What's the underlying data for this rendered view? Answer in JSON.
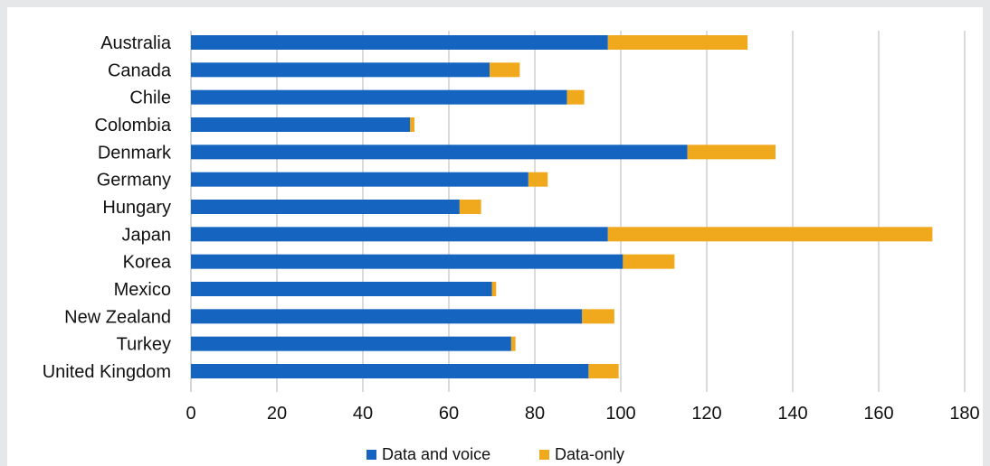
{
  "chart_data": {
    "type": "bar",
    "orientation": "horizontal",
    "stacked": true,
    "categories": [
      "Australia",
      "Canada",
      "Chile",
      "Colombia",
      "Denmark",
      "Germany",
      "Hungary",
      "Japan",
      "Korea",
      "Mexico",
      "New Zealand",
      "Turkey",
      "United Kingdom"
    ],
    "series": [
      {
        "name": "Data and voice",
        "color": "#1565c0",
        "values": [
          97,
          69.5,
          87.5,
          51,
          115.5,
          78.5,
          62.5,
          97,
          100.5,
          70,
          91,
          74.5,
          92.5
        ]
      },
      {
        "name": "Data-only",
        "color": "#f0a81c",
        "values": [
          32.5,
          7,
          4,
          1,
          20.5,
          4.5,
          5,
          75.5,
          12,
          1,
          7.5,
          1,
          7
        ]
      }
    ],
    "xlim": [
      0,
      180
    ],
    "x_ticks": [
      "0",
      "20",
      "40",
      "60",
      "80",
      "100",
      "120",
      "140",
      "160",
      "180"
    ],
    "grid": "vertical",
    "legend_position": "bottom"
  }
}
